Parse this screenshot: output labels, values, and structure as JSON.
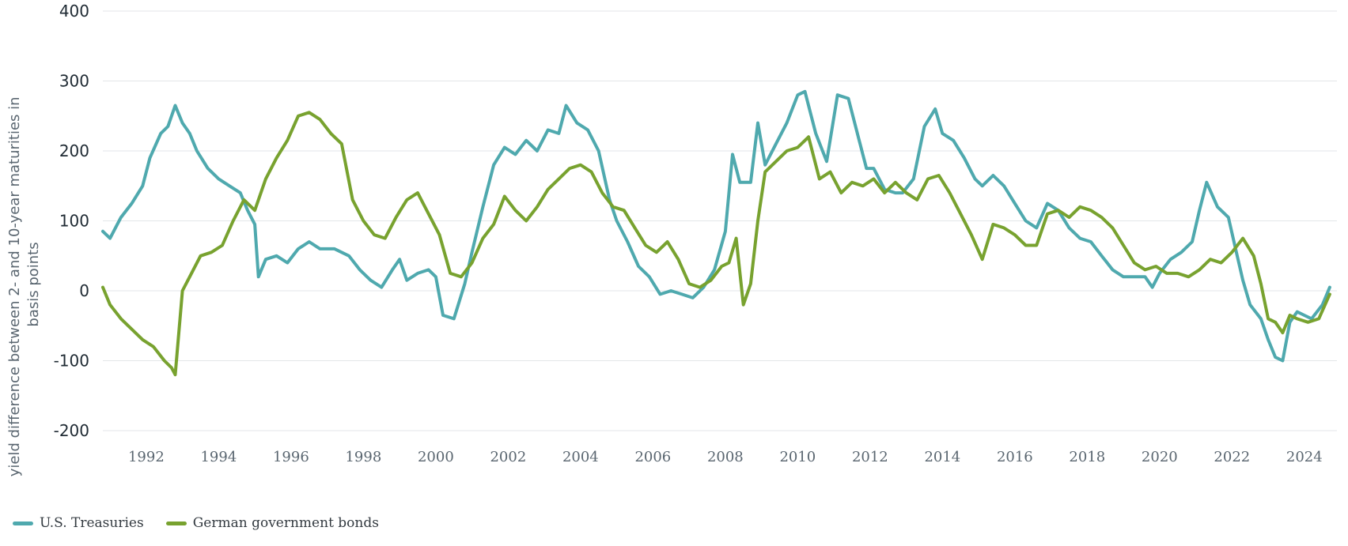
{
  "chart_data": {
    "type": "line",
    "ylabel": "yield difference between 2- and 10-year maturities in basis points",
    "ylabel_lines": [
      "yield difference between 2- and 10-year maturities in",
      "basis points"
    ],
    "ylim": [
      -200,
      400
    ],
    "yticks": [
      400,
      300,
      200,
      100,
      0,
      -100,
      -200
    ],
    "xlim": [
      1990.8,
      2024.9
    ],
    "xticks": [
      1992,
      1994,
      1996,
      1998,
      2000,
      2002,
      2004,
      2006,
      2008,
      2010,
      2012,
      2014,
      2016,
      2018,
      2020,
      2022,
      2024
    ],
    "grid": true,
    "legend_position": "bottom-left",
    "series": [
      {
        "name": "U.S. Treasuries",
        "color": "#4fa9ae",
        "points": [
          [
            1990.8,
            85
          ],
          [
            1991.0,
            75
          ],
          [
            1991.3,
            105
          ],
          [
            1991.6,
            125
          ],
          [
            1991.9,
            150
          ],
          [
            1992.1,
            190
          ],
          [
            1992.4,
            225
          ],
          [
            1992.6,
            235
          ],
          [
            1992.8,
            265
          ],
          [
            1993.0,
            240
          ],
          [
            1993.2,
            225
          ],
          [
            1993.4,
            200
          ],
          [
            1993.7,
            175
          ],
          [
            1994.0,
            160
          ],
          [
            1994.3,
            150
          ],
          [
            1994.6,
            140
          ],
          [
            1994.8,
            115
          ],
          [
            1995.0,
            95
          ],
          [
            1995.1,
            20
          ],
          [
            1995.3,
            45
          ],
          [
            1995.6,
            50
          ],
          [
            1995.9,
            40
          ],
          [
            1996.2,
            60
          ],
          [
            1996.5,
            70
          ],
          [
            1996.8,
            60
          ],
          [
            1997.2,
            60
          ],
          [
            1997.6,
            50
          ],
          [
            1997.9,
            30
          ],
          [
            1998.2,
            15
          ],
          [
            1998.5,
            5
          ],
          [
            1998.8,
            30
          ],
          [
            1999.0,
            45
          ],
          [
            1999.2,
            15
          ],
          [
            1999.5,
            25
          ],
          [
            1999.8,
            30
          ],
          [
            2000.0,
            20
          ],
          [
            2000.2,
            -35
          ],
          [
            2000.5,
            -40
          ],
          [
            2000.8,
            10
          ],
          [
            2001.0,
            55
          ],
          [
            2001.3,
            120
          ],
          [
            2001.6,
            180
          ],
          [
            2001.9,
            205
          ],
          [
            2002.2,
            195
          ],
          [
            2002.5,
            215
          ],
          [
            2002.8,
            200
          ],
          [
            2003.1,
            230
          ],
          [
            2003.4,
            225
          ],
          [
            2003.6,
            265
          ],
          [
            2003.9,
            240
          ],
          [
            2004.2,
            230
          ],
          [
            2004.5,
            200
          ],
          [
            2004.8,
            130
          ],
          [
            2005.0,
            100
          ],
          [
            2005.3,
            70
          ],
          [
            2005.6,
            35
          ],
          [
            2005.9,
            20
          ],
          [
            2006.2,
            -5
          ],
          [
            2006.5,
            0
          ],
          [
            2006.8,
            -5
          ],
          [
            2007.1,
            -10
          ],
          [
            2007.4,
            5
          ],
          [
            2007.7,
            30
          ],
          [
            2008.0,
            85
          ],
          [
            2008.2,
            195
          ],
          [
            2008.4,
            155
          ],
          [
            2008.7,
            155
          ],
          [
            2008.9,
            240
          ],
          [
            2009.1,
            180
          ],
          [
            2009.4,
            210
          ],
          [
            2009.7,
            240
          ],
          [
            2010.0,
            280
          ],
          [
            2010.2,
            285
          ],
          [
            2010.5,
            225
          ],
          [
            2010.8,
            185
          ],
          [
            2011.1,
            280
          ],
          [
            2011.4,
            275
          ],
          [
            2011.7,
            215
          ],
          [
            2011.9,
            175
          ],
          [
            2012.1,
            175
          ],
          [
            2012.4,
            145
          ],
          [
            2012.7,
            140
          ],
          [
            2012.9,
            140
          ],
          [
            2013.2,
            160
          ],
          [
            2013.5,
            235
          ],
          [
            2013.8,
            260
          ],
          [
            2014.0,
            225
          ],
          [
            2014.3,
            215
          ],
          [
            2014.6,
            190
          ],
          [
            2014.9,
            160
          ],
          [
            2015.1,
            150
          ],
          [
            2015.4,
            165
          ],
          [
            2015.7,
            150
          ],
          [
            2016.0,
            125
          ],
          [
            2016.3,
            100
          ],
          [
            2016.6,
            90
          ],
          [
            2016.9,
            125
          ],
          [
            2017.2,
            115
          ],
          [
            2017.5,
            90
          ],
          [
            2017.8,
            75
          ],
          [
            2018.1,
            70
          ],
          [
            2018.4,
            50
          ],
          [
            2018.7,
            30
          ],
          [
            2019.0,
            20
          ],
          [
            2019.3,
            20
          ],
          [
            2019.6,
            20
          ],
          [
            2019.8,
            5
          ],
          [
            2020.0,
            25
          ],
          [
            2020.3,
            45
          ],
          [
            2020.6,
            55
          ],
          [
            2020.9,
            70
          ],
          [
            2021.1,
            115
          ],
          [
            2021.3,
            155
          ],
          [
            2021.6,
            120
          ],
          [
            2021.9,
            105
          ],
          [
            2022.1,
            60
          ],
          [
            2022.3,
            15
          ],
          [
            2022.5,
            -20
          ],
          [
            2022.8,
            -40
          ],
          [
            2023.0,
            -70
          ],
          [
            2023.2,
            -95
          ],
          [
            2023.4,
            -100
          ],
          [
            2023.6,
            -45
          ],
          [
            2023.8,
            -30
          ],
          [
            2024.0,
            -35
          ],
          [
            2024.2,
            -40
          ],
          [
            2024.5,
            -20
          ],
          [
            2024.7,
            5
          ]
        ]
      },
      {
        "name": "German government bonds",
        "color": "#78a22f",
        "points": [
          [
            1990.8,
            5
          ],
          [
            1991.0,
            -20
          ],
          [
            1991.3,
            -40
          ],
          [
            1991.6,
            -55
          ],
          [
            1991.9,
            -70
          ],
          [
            1992.2,
            -80
          ],
          [
            1992.5,
            -100
          ],
          [
            1992.7,
            -110
          ],
          [
            1992.8,
            -120
          ],
          [
            1993.0,
            0
          ],
          [
            1993.2,
            20
          ],
          [
            1993.5,
            50
          ],
          [
            1993.8,
            55
          ],
          [
            1994.1,
            65
          ],
          [
            1994.4,
            100
          ],
          [
            1994.7,
            130
          ],
          [
            1995.0,
            115
          ],
          [
            1995.3,
            160
          ],
          [
            1995.6,
            190
          ],
          [
            1995.9,
            215
          ],
          [
            1996.2,
            250
          ],
          [
            1996.5,
            255
          ],
          [
            1996.8,
            245
          ],
          [
            1997.1,
            225
          ],
          [
            1997.4,
            210
          ],
          [
            1997.7,
            130
          ],
          [
            1998.0,
            100
          ],
          [
            1998.3,
            80
          ],
          [
            1998.6,
            75
          ],
          [
            1998.9,
            105
          ],
          [
            1999.2,
            130
          ],
          [
            1999.5,
            140
          ],
          [
            1999.8,
            110
          ],
          [
            2000.1,
            80
          ],
          [
            2000.4,
            25
          ],
          [
            2000.7,
            20
          ],
          [
            2001.0,
            40
          ],
          [
            2001.3,
            75
          ],
          [
            2001.6,
            95
          ],
          [
            2001.9,
            135
          ],
          [
            2002.2,
            115
          ],
          [
            2002.5,
            100
          ],
          [
            2002.8,
            120
          ],
          [
            2003.1,
            145
          ],
          [
            2003.4,
            160
          ],
          [
            2003.7,
            175
          ],
          [
            2004.0,
            180
          ],
          [
            2004.3,
            170
          ],
          [
            2004.6,
            140
          ],
          [
            2004.9,
            120
          ],
          [
            2005.2,
            115
          ],
          [
            2005.5,
            90
          ],
          [
            2005.8,
            65
          ],
          [
            2006.1,
            55
          ],
          [
            2006.4,
            70
          ],
          [
            2006.7,
            45
          ],
          [
            2007.0,
            10
          ],
          [
            2007.3,
            5
          ],
          [
            2007.6,
            15
          ],
          [
            2007.9,
            35
          ],
          [
            2008.1,
            40
          ],
          [
            2008.3,
            75
          ],
          [
            2008.5,
            -20
          ],
          [
            2008.7,
            10
          ],
          [
            2008.9,
            100
          ],
          [
            2009.1,
            170
          ],
          [
            2009.4,
            185
          ],
          [
            2009.7,
            200
          ],
          [
            2010.0,
            205
          ],
          [
            2010.3,
            220
          ],
          [
            2010.6,
            160
          ],
          [
            2010.9,
            170
          ],
          [
            2011.2,
            140
          ],
          [
            2011.5,
            155
          ],
          [
            2011.8,
            150
          ],
          [
            2012.1,
            160
          ],
          [
            2012.4,
            140
          ],
          [
            2012.7,
            155
          ],
          [
            2013.0,
            140
          ],
          [
            2013.3,
            130
          ],
          [
            2013.6,
            160
          ],
          [
            2013.9,
            165
          ],
          [
            2014.2,
            140
          ],
          [
            2014.5,
            110
          ],
          [
            2014.8,
            80
          ],
          [
            2015.1,
            45
          ],
          [
            2015.4,
            95
          ],
          [
            2015.7,
            90
          ],
          [
            2016.0,
            80
          ],
          [
            2016.3,
            65
          ],
          [
            2016.6,
            65
          ],
          [
            2016.9,
            110
          ],
          [
            2017.2,
            115
          ],
          [
            2017.5,
            105
          ],
          [
            2017.8,
            120
          ],
          [
            2018.1,
            115
          ],
          [
            2018.4,
            105
          ],
          [
            2018.7,
            90
          ],
          [
            2019.0,
            65
          ],
          [
            2019.3,
            40
          ],
          [
            2019.6,
            30
          ],
          [
            2019.9,
            35
          ],
          [
            2020.2,
            25
          ],
          [
            2020.5,
            25
          ],
          [
            2020.8,
            20
          ],
          [
            2021.1,
            30
          ],
          [
            2021.4,
            45
          ],
          [
            2021.7,
            40
          ],
          [
            2022.0,
            55
          ],
          [
            2022.3,
            75
          ],
          [
            2022.6,
            50
          ],
          [
            2022.8,
            10
          ],
          [
            2023.0,
            -40
          ],
          [
            2023.2,
            -45
          ],
          [
            2023.4,
            -60
          ],
          [
            2023.6,
            -35
          ],
          [
            2023.8,
            -40
          ],
          [
            2024.1,
            -45
          ],
          [
            2024.4,
            -40
          ],
          [
            2024.7,
            -5
          ]
        ]
      }
    ]
  }
}
